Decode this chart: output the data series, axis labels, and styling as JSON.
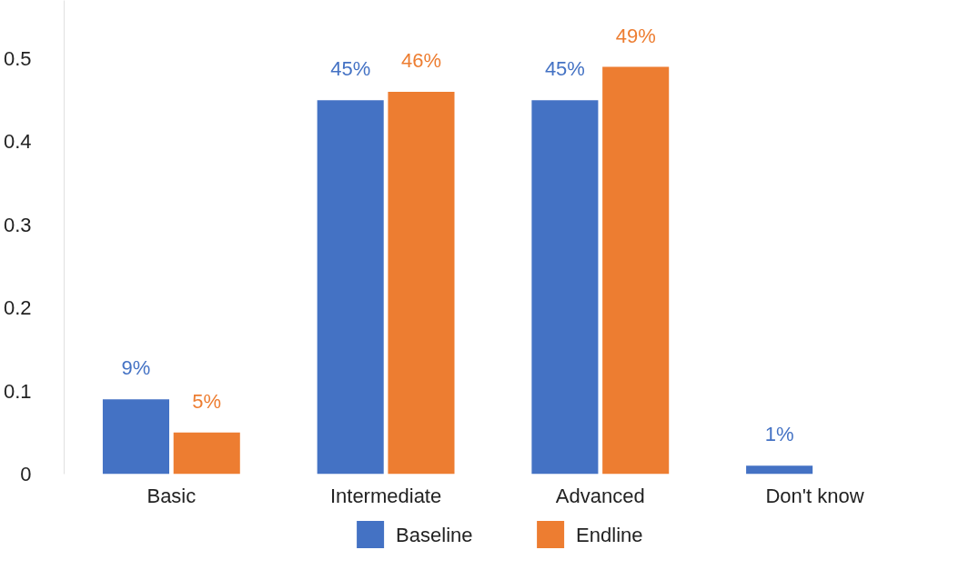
{
  "chart_data": {
    "type": "bar",
    "categories": [
      "Basic",
      "Intermediate",
      "Advanced",
      "Don't know"
    ],
    "series": [
      {
        "name": "Baseline",
        "color": "#4472c4",
        "values": [
          0.09,
          0.45,
          0.45,
          0.01
        ],
        "value_labels": [
          "9%",
          "45%",
          "45%",
          "1%"
        ]
      },
      {
        "name": "Endline",
        "color": "#ed7d31",
        "values": [
          0.05,
          0.46,
          0.49,
          null
        ],
        "value_labels": [
          "5%",
          "46%",
          "49%",
          null
        ]
      }
    ],
    "ylim": [
      0,
      0.57
    ],
    "yticks": [
      0,
      0.1,
      0.2,
      0.3,
      0.4,
      0.5
    ],
    "grid": false,
    "legend": "bottom"
  }
}
